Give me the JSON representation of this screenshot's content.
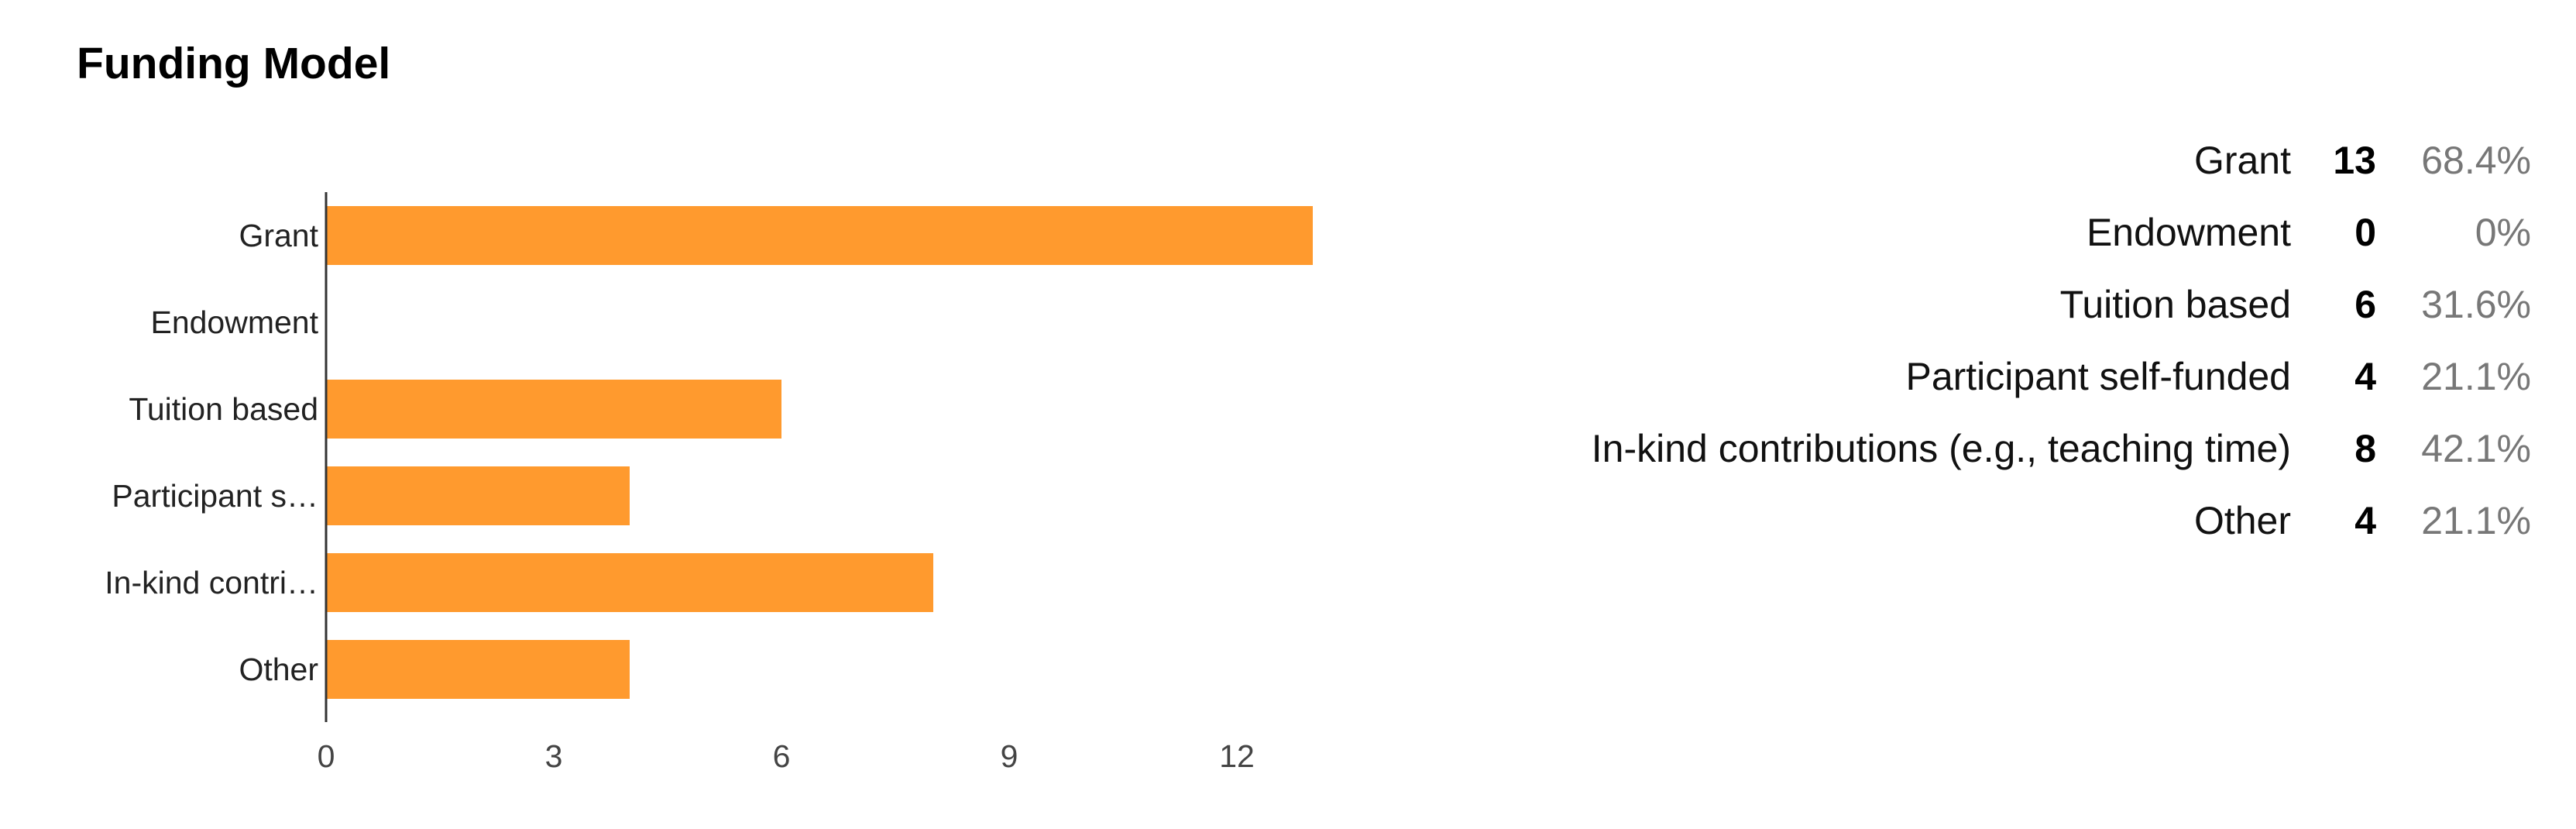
{
  "title": "Funding Model",
  "colors": {
    "bar": "#FF9A2E",
    "axis": "#333333"
  },
  "chart_data": {
    "type": "bar",
    "orientation": "horizontal",
    "title": "Funding Model",
    "xlabel": "",
    "ylabel": "",
    "categories": [
      "Grant",
      "Endowment",
      "Tuition based",
      "Participant s…",
      "In-kind contri…",
      "Other"
    ],
    "values": [
      13,
      0,
      6,
      4,
      8,
      4
    ],
    "x_ticks": [
      0,
      3,
      6,
      9,
      12
    ],
    "xlim": [
      0,
      13
    ],
    "grid": false
  },
  "summary": [
    {
      "label": "Grant",
      "count": "13",
      "percent": "68.4%"
    },
    {
      "label": "Endowment",
      "count": "0",
      "percent": "0%"
    },
    {
      "label": "Tuition based",
      "count": "6",
      "percent": "31.6%"
    },
    {
      "label": "Participant self-funded",
      "count": "4",
      "percent": "21.1%"
    },
    {
      "label": "In-kind contributions (e.g., teaching time)",
      "count": "8",
      "percent": "42.1%"
    },
    {
      "label": "Other",
      "count": "4",
      "percent": "21.1%"
    }
  ]
}
